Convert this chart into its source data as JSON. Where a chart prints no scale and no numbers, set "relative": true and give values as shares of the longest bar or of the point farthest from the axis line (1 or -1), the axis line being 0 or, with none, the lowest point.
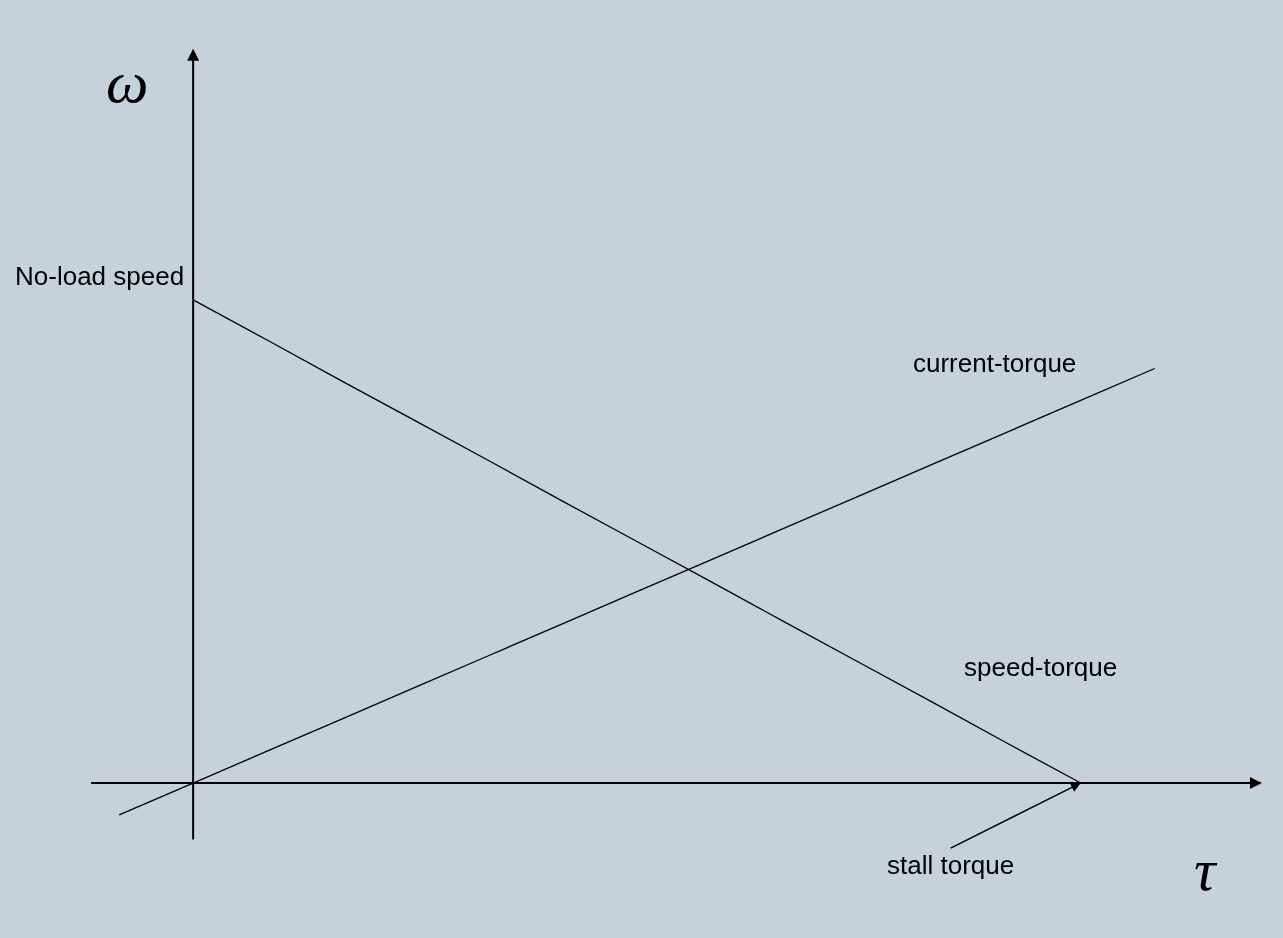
{
  "chart_data": {
    "type": "line",
    "relative": true,
    "xlabel": "τ",
    "ylabel": "ω",
    "categories": [
      null,
      null,
      null,
      null,
      null,
      null,
      null,
      null,
      null,
      null,
      null,
      null,
      null,
      null,
      null
    ],
    "series": [
      {
        "name": "speed-torque",
        "color": "#000000",
        "values": [
          null,
          1,
          0.917,
          0.833,
          0.75,
          0.667,
          0.583,
          0.5,
          0.417,
          0.333,
          0.25,
          0.167,
          0.083,
          0,
          null
        ]
      },
      {
        "name": "current-torque",
        "color": "#000000",
        "values": [
          -0.066,
          0,
          0.066,
          0.132,
          0.198,
          0.264,
          0.33,
          0.396,
          0.462,
          0.528,
          0.594,
          0.66,
          0.726,
          0.792,
          0.858
        ]
      }
    ],
    "annotations": [
      "No-load speed",
      "stall torque"
    ],
    "legend": false,
    "grid": false,
    "tick_labels": false,
    "marker": "none",
    "line_style": "solid"
  }
}
